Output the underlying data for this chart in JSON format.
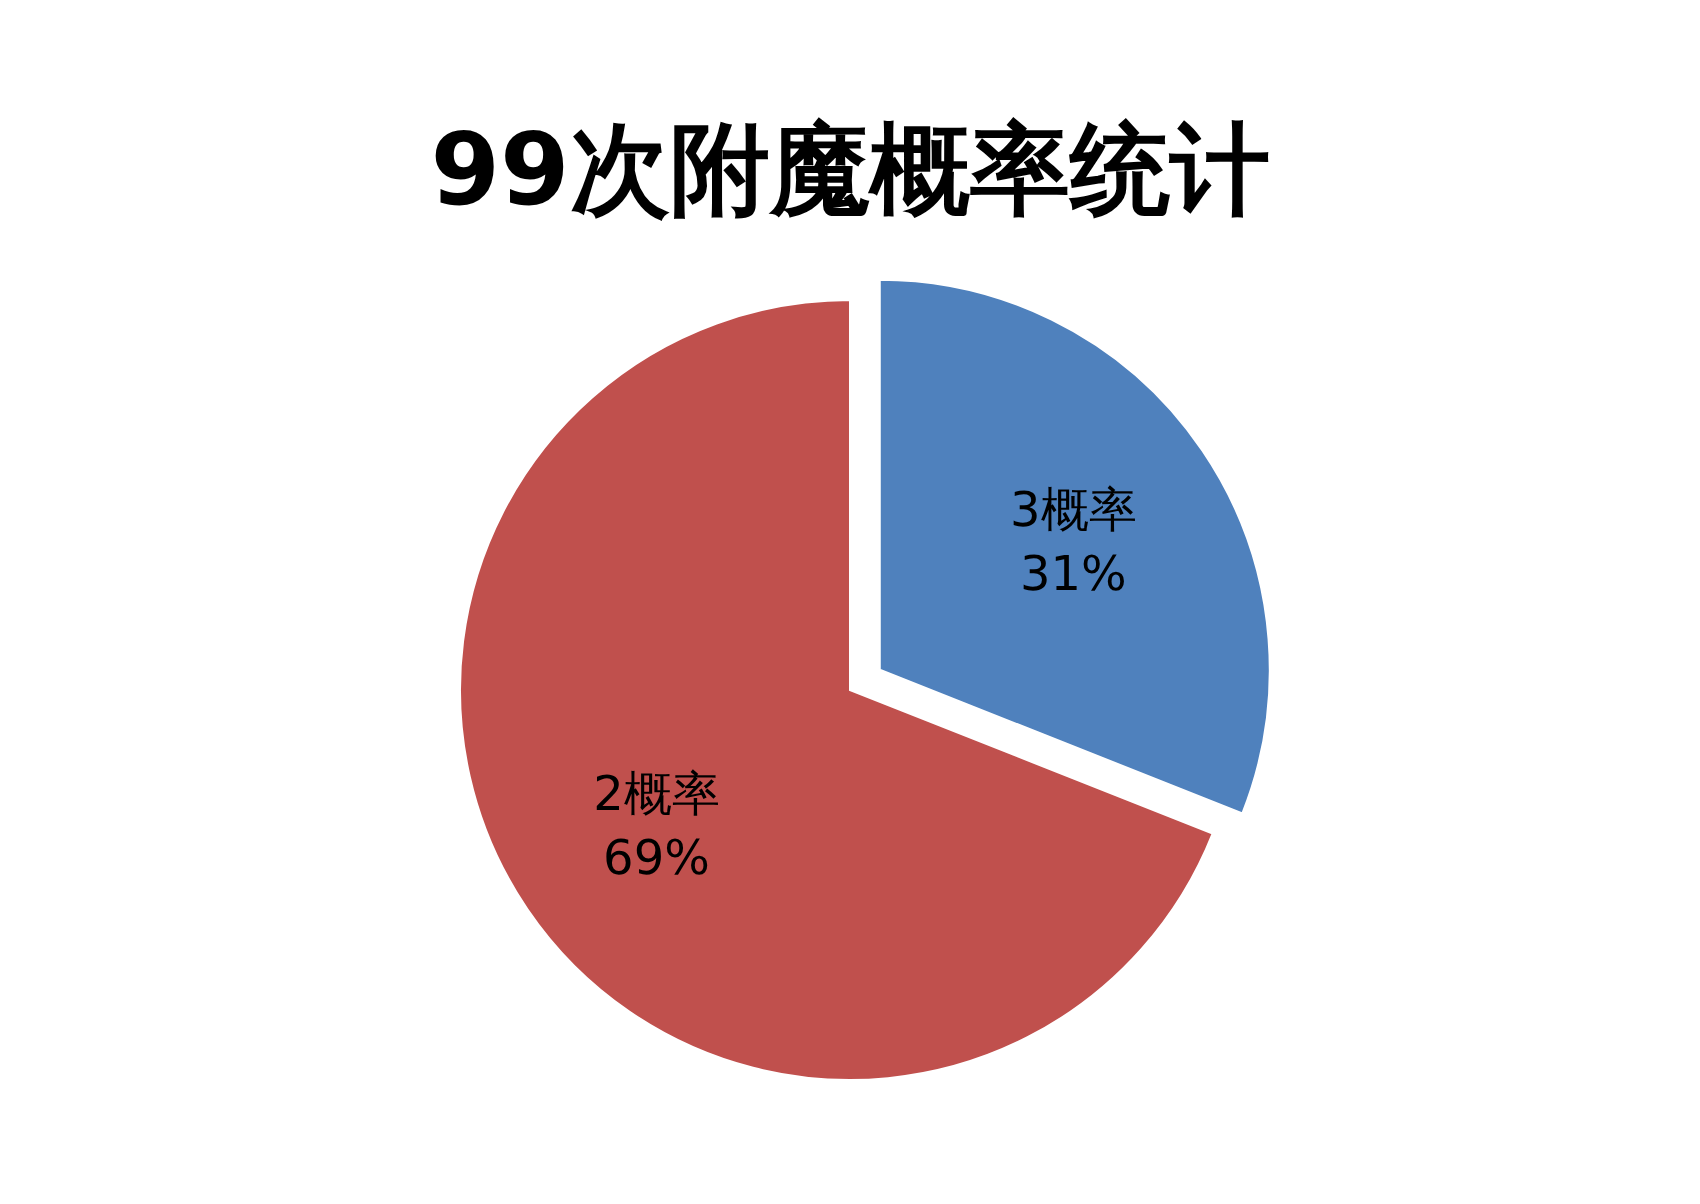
{
  "chart_data": {
    "type": "pie",
    "title": "99次附魔概率统计",
    "categories": [
      "3概率",
      "2概率"
    ],
    "values": [
      31,
      69
    ],
    "colors": [
      "#4f81bd",
      "#c0504d"
    ],
    "value_labels": [
      "31%",
      "69%"
    ]
  }
}
